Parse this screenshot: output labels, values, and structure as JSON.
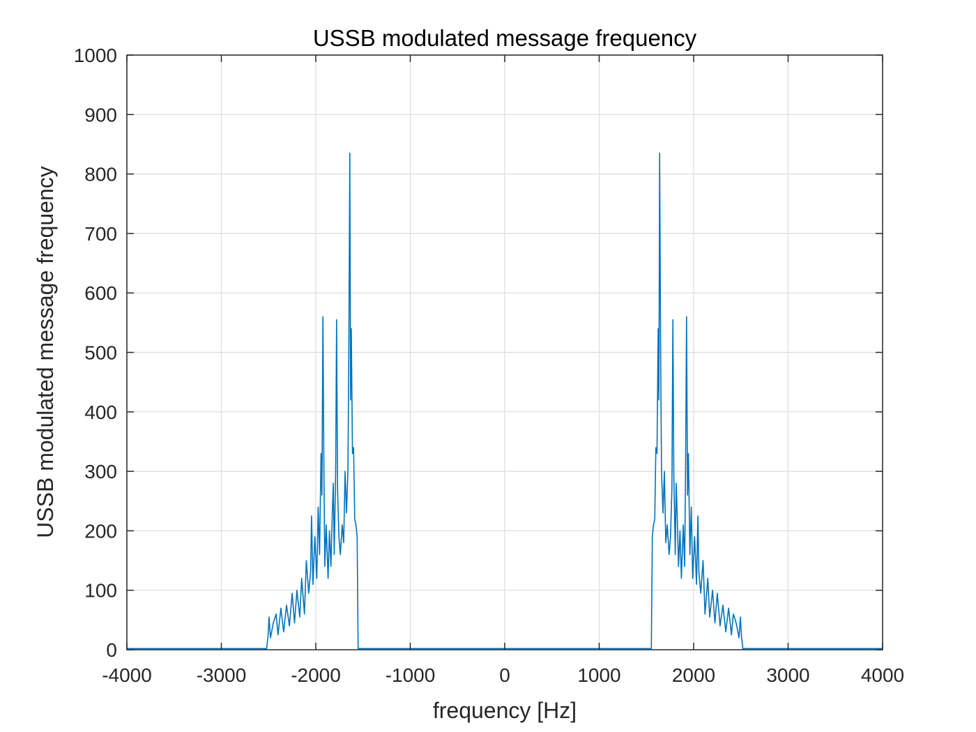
{
  "chart_data": {
    "type": "line",
    "title": "USSB modulated message frequency",
    "xlabel": "frequency [Hz]",
    "ylabel": "USSB modulated message frequency",
    "xlim": [
      -4000,
      4000
    ],
    "ylim": [
      0,
      1000
    ],
    "x_ticks": [
      -4000,
      -3000,
      -2000,
      -1000,
      0,
      1000,
      2000,
      3000,
      4000
    ],
    "y_ticks": [
      0,
      100,
      200,
      300,
      400,
      500,
      600,
      700,
      800,
      900,
      1000
    ],
    "x_tick_labels": [
      "-4000",
      "-3000",
      "-2000",
      "-1000",
      "0",
      "1000",
      "2000",
      "3000",
      "4000"
    ],
    "y_tick_labels": [
      "0",
      "100",
      "200",
      "300",
      "400",
      "500",
      "600",
      "700",
      "800",
      "900",
      "1000"
    ],
    "grid": true,
    "box": true,
    "symmetric_about_zero": true,
    "series": [
      {
        "color": "#0072BD",
        "points": [
          [
            -4000,
            2
          ],
          [
            -2520,
            2
          ],
          [
            -2505,
            25
          ],
          [
            -2495,
            55
          ],
          [
            -2480,
            20
          ],
          [
            -2450,
            45
          ],
          [
            -2420,
            60
          ],
          [
            -2400,
            25
          ],
          [
            -2370,
            70
          ],
          [
            -2340,
            30
          ],
          [
            -2310,
            75
          ],
          [
            -2280,
            40
          ],
          [
            -2250,
            95
          ],
          [
            -2225,
            45
          ],
          [
            -2200,
            100
          ],
          [
            -2170,
            55
          ],
          [
            -2150,
            120
          ],
          [
            -2120,
            60
          ],
          [
            -2100,
            150
          ],
          [
            -2075,
            95
          ],
          [
            -2055,
            130
          ],
          [
            -2045,
            225
          ],
          [
            -2030,
            110
          ],
          [
            -2010,
            190
          ],
          [
            -1990,
            120
          ],
          [
            -1975,
            240
          ],
          [
            -1960,
            160
          ],
          [
            -1945,
            330
          ],
          [
            -1935,
            260
          ],
          [
            -1925,
            560
          ],
          [
            -1915,
            320
          ],
          [
            -1905,
            140
          ],
          [
            -1890,
            210
          ],
          [
            -1870,
            120
          ],
          [
            -1855,
            200
          ],
          [
            -1840,
            140
          ],
          [
            -1825,
            230
          ],
          [
            -1815,
            280
          ],
          [
            -1805,
            160
          ],
          [
            -1790,
            300
          ],
          [
            -1780,
            555
          ],
          [
            -1770,
            270
          ],
          [
            -1755,
            190
          ],
          [
            -1740,
            160
          ],
          [
            -1720,
            210
          ],
          [
            -1705,
            180
          ],
          [
            -1690,
            300
          ],
          [
            -1675,
            230
          ],
          [
            -1660,
            300
          ],
          [
            -1650,
            510
          ],
          [
            -1640,
            835
          ],
          [
            -1632,
            420
          ],
          [
            -1624,
            540
          ],
          [
            -1612,
            330
          ],
          [
            -1600,
            340
          ],
          [
            -1588,
            220
          ],
          [
            -1575,
            210
          ],
          [
            -1562,
            190
          ],
          [
            -1552,
            2
          ],
          [
            4000,
            2
          ]
        ]
      }
    ]
  }
}
